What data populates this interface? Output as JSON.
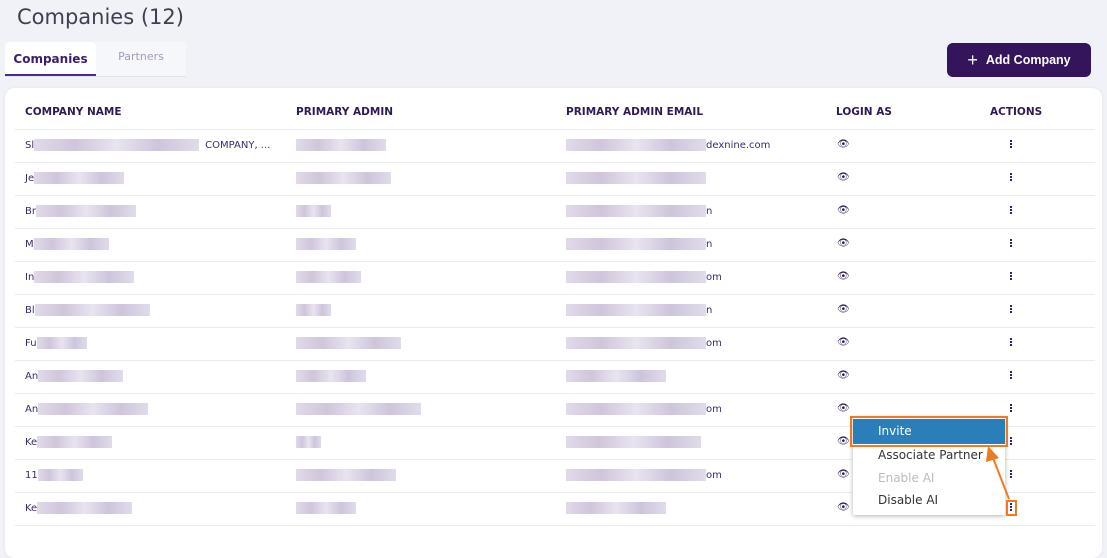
{
  "page": {
    "title": "Companies (12)"
  },
  "tabs": [
    {
      "label": "Companies",
      "active": true
    },
    {
      "label": "Partners",
      "active": false
    }
  ],
  "toolbar": {
    "add_label": "Add Company",
    "add_icon": "plus-icon"
  },
  "table": {
    "headers": [
      "COMPANY NAME",
      "PRIMARY ADMIN",
      "PRIMARY ADMIN EMAIL",
      "LOGIN AS",
      "ACTIONS"
    ],
    "rows": [
      {
        "name_prefix": "Sl",
        "name_suffix": "COMPANY, ...",
        "email_suffix": "dexnine.com"
      },
      {
        "name_prefix": "Je",
        "name_suffix": "",
        "email_suffix": ""
      },
      {
        "name_prefix": "Br",
        "name_suffix": "",
        "email_suffix": "n"
      },
      {
        "name_prefix": "M",
        "name_suffix": "",
        "email_suffix": "n"
      },
      {
        "name_prefix": "In",
        "name_suffix": "",
        "email_suffix": "om"
      },
      {
        "name_prefix": "Bl",
        "name_suffix": "",
        "email_suffix": "n"
      },
      {
        "name_prefix": "Fu",
        "name_suffix": "",
        "email_suffix": "om"
      },
      {
        "name_prefix": "An",
        "name_suffix": "",
        "email_suffix": ""
      },
      {
        "name_prefix": "An",
        "name_suffix": "",
        "email_suffix": "om"
      },
      {
        "name_prefix": "Ke",
        "name_suffix": "",
        "email_suffix": ""
      },
      {
        "name_prefix": "11",
        "name_suffix": "",
        "email_suffix": "om"
      },
      {
        "name_prefix": "Ke",
        "name_suffix": "",
        "email_suffix": ""
      }
    ],
    "login_icon": "eye-icon",
    "actions_icon": "kebab-menu-icon"
  },
  "context_menu": {
    "items": [
      {
        "label": "Invite",
        "state": "highlighted"
      },
      {
        "label": "Associate Partner",
        "state": "enabled"
      },
      {
        "label": "Enable AI",
        "state": "disabled"
      },
      {
        "label": "Disable AI",
        "state": "enabled"
      }
    ]
  },
  "colors": {
    "accent": "#34145a",
    "highlight": "#2a7fb8",
    "annotation": "#f07a22"
  }
}
